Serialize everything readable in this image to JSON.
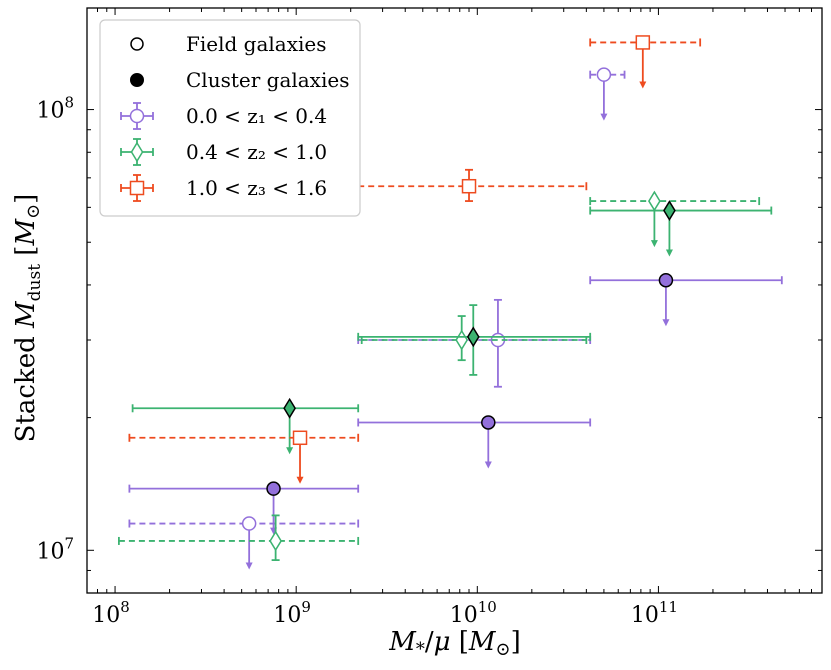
{
  "chart_data": {
    "type": "scatter",
    "title": "",
    "xscale": "log",
    "yscale": "log",
    "xlim": [
      70000000,
      800000000000
    ],
    "ylim": [
      8000000,
      170000000
    ],
    "xlabel": "M*/μ [M⊙]",
    "ylabel": "Stacked M_dust [M⊙]",
    "xtick_major": [
      {
        "value": 100000000,
        "base": "10",
        "exp": "8"
      },
      {
        "value": 1000000000,
        "base": "10",
        "exp": "9"
      },
      {
        "value": 10000000000,
        "base": "10",
        "exp": "10"
      },
      {
        "value": 100000000000,
        "base": "10",
        "exp": "11"
      }
    ],
    "ytick_major": [
      {
        "value": 10000000,
        "base": "10",
        "exp": "7"
      },
      {
        "value": 100000000,
        "base": "10",
        "exp": "8"
      }
    ],
    "colors": {
      "z1": "#9370DB",
      "z2": "#3CB371",
      "z3": "#EE4B1F"
    },
    "legend": {
      "position": "top-left",
      "entries": [
        {
          "label": "Field galaxies",
          "style": "open-circle"
        },
        {
          "label": "Cluster galaxies",
          "style": "filled-circle"
        },
        {
          "label": "0.0 < z₁ < 0.4",
          "style": "z1"
        },
        {
          "label": "0.4 < z₂ < 1.0",
          "style": "z2"
        },
        {
          "label": "1.0 < z₃ < 1.6",
          "style": "z3"
        }
      ]
    },
    "series": [
      {
        "name": "field 0.0<z<0.4",
        "population": "field",
        "z": "z1",
        "marker": "circle",
        "points": [
          {
            "x": 550000000,
            "y": 11500000,
            "xerr": [
              120000000,
              2200000000
            ],
            "upper_limit": true
          },
          {
            "x": 13000000000,
            "y": 30000000,
            "xerr": [
              2200000000,
              42000000000
            ],
            "yerr": [
              23500000,
              37000000
            ]
          },
          {
            "x": 50000000000,
            "y": 120000000,
            "xerr": [
              42000000000,
              65000000000
            ],
            "upper_limit": true
          }
        ]
      },
      {
        "name": "cluster 0.0<z<0.4",
        "population": "cluster",
        "z": "z1",
        "marker": "circle",
        "points": [
          {
            "x": 750000000,
            "y": 13800000,
            "xerr": [
              120000000,
              2200000000
            ],
            "upper_limit": true
          },
          {
            "x": 11500000000,
            "y": 19500000,
            "xerr": [
              2200000000,
              42000000000
            ],
            "upper_limit": true
          },
          {
            "x": 110000000000,
            "y": 41000000,
            "xerr": [
              42000000000,
              480000000000
            ],
            "upper_limit": true
          }
        ]
      },
      {
        "name": "field 0.4<z<1.0",
        "population": "field",
        "z": "z2",
        "marker": "diamond",
        "points": [
          {
            "x": 770000000,
            "y": 10500000,
            "xerr": [
              105000000,
              2200000000
            ],
            "yerr": [
              9500000,
              12000000
            ]
          },
          {
            "x": 8200000000,
            "y": 30000000,
            "xerr": [
              2300000000,
              40000000000
            ],
            "yerr": [
              27000000,
              34000000
            ]
          },
          {
            "x": 95000000000,
            "y": 62000000,
            "xerr": [
              42000000000,
              360000000000
            ],
            "upper_limit": true
          }
        ]
      },
      {
        "name": "cluster 0.4<z<1.0",
        "population": "cluster",
        "z": "z2",
        "marker": "diamond",
        "points": [
          {
            "x": 920000000,
            "y": 21000000,
            "xerr": [
              125000000,
              2200000000
            ],
            "upper_limit": true
          },
          {
            "x": 9500000000,
            "y": 30500000,
            "xerr": [
              2200000000,
              42000000000
            ],
            "yerr": [
              25000000,
              36000000
            ]
          },
          {
            "x": 115000000000,
            "y": 59000000,
            "xerr": [
              42000000000,
              420000000000
            ],
            "upper_limit": true
          }
        ]
      },
      {
        "name": "field 1.0<z<1.6",
        "population": "field",
        "z": "z3",
        "marker": "square",
        "points": [
          {
            "x": 1050000000,
            "y": 18000000,
            "xerr": [
              120000000,
              2200000000
            ],
            "upper_limit": true
          },
          {
            "x": 9000000000,
            "y": 67000000,
            "xerr": [
              2200000000,
              40000000000
            ],
            "yerr": [
              62000000,
              73000000
            ]
          },
          {
            "x": 82000000000,
            "y": 142000000,
            "xerr": [
              42000000000,
              170000000000
            ],
            "upper_limit": true
          }
        ]
      }
    ]
  }
}
